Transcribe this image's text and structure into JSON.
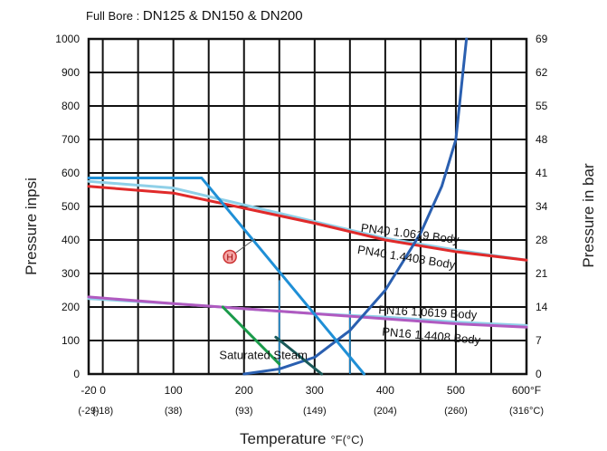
{
  "chart_data": {
    "type": "line",
    "subtitle_prefix": "Full Bore : ",
    "subtitle": "DN125 & DN150 & DN200",
    "xlabel": "Temperature",
    "xunit_f": "°F",
    "xunit_c": "(°C)",
    "ylabel": "Pressure inpsi",
    "y2label": "Pressure in bar",
    "xlim": [
      -20,
      600
    ],
    "ylim": [
      0,
      1000
    ],
    "grid": true,
    "x_ticks": [
      "-20",
      "0",
      "100",
      "200",
      "300",
      "400",
      "500",
      "600°F"
    ],
    "x_ticks_c": [
      "(-29)",
      "(-18)",
      "(38)",
      "(93)",
      "(149)",
      "(204)",
      "(260)",
      "(316°C)"
    ],
    "y_ticks": [
      "0",
      "100",
      "200",
      "300",
      "400",
      "500",
      "600",
      "700",
      "800",
      "900",
      "1000"
    ],
    "y2_ticks": [
      "0",
      "7",
      "14",
      "21",
      "28",
      "34",
      "41",
      "48",
      "55",
      "62",
      "69"
    ],
    "series": [
      {
        "name": "PN40 1.0619 Body",
        "color": "#8fd0e8",
        "x": [
          -20,
          100,
          200,
          300,
          400,
          500,
          600
        ],
        "y": [
          575,
          555,
          505,
          455,
          405,
          370,
          340
        ]
      },
      {
        "name": "PN40 1.4408 Body",
        "color": "#e02a2a",
        "x": [
          -20,
          100,
          200,
          300,
          400,
          500,
          600
        ],
        "y": [
          560,
          540,
          495,
          450,
          400,
          365,
          340
        ]
      },
      {
        "name": "PN16 1.0619 Body",
        "color": "#8fd0e8",
        "x": [
          -20,
          100,
          200,
          300,
          400,
          500,
          600
        ],
        "y": [
          225,
          210,
          195,
          180,
          170,
          155,
          145
        ]
      },
      {
        "name": "PN16 1.4408 Body",
        "color": "#b05ac0",
        "x": [
          -20,
          100,
          200,
          300,
          400,
          500,
          600
        ],
        "y": [
          230,
          210,
          195,
          180,
          165,
          150,
          140
        ]
      },
      {
        "name": "Saturated Steam",
        "color": "#2a5fb0",
        "x": [
          200,
          250,
          300,
          350,
          400,
          450,
          480,
          500,
          515
        ],
        "y": [
          0,
          15,
          50,
          130,
          250,
          420,
          560,
          700,
          1000
        ]
      },
      {
        "name": "",
        "color": "#1f8fd6",
        "x": [
          -20,
          140,
          370
        ],
        "y": [
          585,
          585,
          0
        ]
      },
      {
        "name": "",
        "color": "#1a9a4a",
        "x": [
          170,
          250
        ],
        "y": [
          200,
          30
        ]
      },
      {
        "name": "",
        "color": "#1a5a5a",
        "x": [
          245,
          310
        ],
        "y": [
          110,
          0
        ]
      }
    ],
    "vertical_markers": [
      {
        "x": 250,
        "y": 280,
        "color": "#1f8fd6"
      },
      {
        "x": 350,
        "y": 190,
        "color": "#1f8fd6"
      }
    ],
    "point_marker": {
      "label": "H",
      "x": 180,
      "y": 350
    },
    "curve_labels": [
      {
        "text": "PN40 1.0619 Body",
        "x": 365,
        "y": 425,
        "angle": 7
      },
      {
        "text": "PN40 1.4408 Body",
        "x": 360,
        "y": 360,
        "angle": 9
      },
      {
        "text": "PN16 1.0619 Body",
        "x": 390,
        "y": 180,
        "angle": 3
      },
      {
        "text": "PN16 1.4408 Body",
        "x": 395,
        "y": 115,
        "angle": 5
      },
      {
        "text": "Saturated Steam",
        "x": 165,
        "y": 45,
        "angle": 0
      }
    ]
  }
}
